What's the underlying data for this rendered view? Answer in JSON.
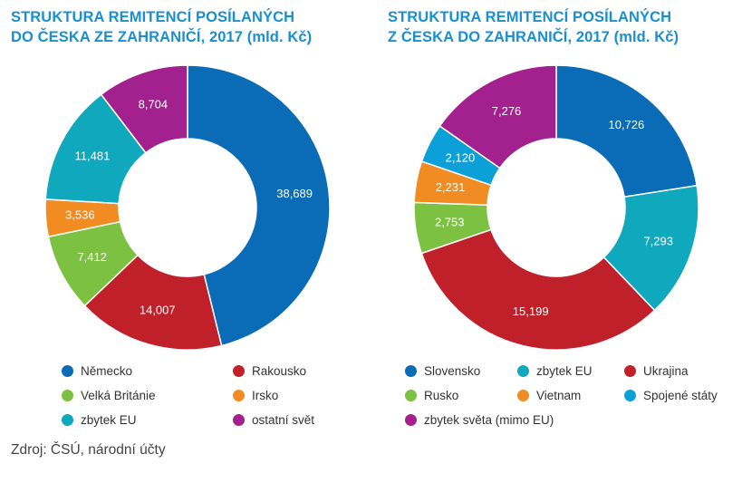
{
  "chart_data": [
    {
      "type": "pie",
      "title": [
        "STRUKTURA REMITENCÍ POSÍLANÝCH",
        "DO ČESKA ZE ZAHRANIČÍ, 2017 (mld. Kč)"
      ],
      "categories": [
        "Německo",
        "Rakousko",
        "Velká Británie",
        "Irsko",
        "zbytek EU",
        "ostatní svět"
      ],
      "values": [
        38.689,
        14.007,
        7.412,
        3.536,
        11.481,
        8.704
      ],
      "value_labels": [
        "38,689",
        "14,007",
        "7,412",
        "3,536",
        "11,481",
        "8,704"
      ],
      "colors": [
        "#0a6cb6",
        "#c0202a",
        "#7dc142",
        "#f08c21",
        "#0fa8bd",
        "#a2218f"
      ],
      "donut": true,
      "legend": "bottom"
    },
    {
      "type": "pie",
      "title": [
        "STRUKTURA REMITENCÍ POSÍLANÝCH",
        "Z ČESKA DO ZAHRANIČÍ, 2017 (mld. Kč)"
      ],
      "categories": [
        "Slovensko",
        "zbytek EU",
        "Ukrajina",
        "Rusko",
        "Vietnam",
        "Spojené státy",
        "zbytek světa (mimo EU)"
      ],
      "values": [
        10.726,
        7.293,
        15.199,
        2.753,
        2.231,
        2.12,
        7.276
      ],
      "value_labels": [
        "10,726",
        "7,293",
        "15,199",
        "2,753",
        "2,231",
        "2,120",
        "7,276"
      ],
      "colors": [
        "#0a6cb6",
        "#0fa8bd",
        "#c0202a",
        "#7dc142",
        "#f08c21",
        "#0ba1d8",
        "#a2218f"
      ],
      "donut": true,
      "legend": "bottom"
    }
  ],
  "source_note": "Zdroj: ČSÚ, národní účty"
}
